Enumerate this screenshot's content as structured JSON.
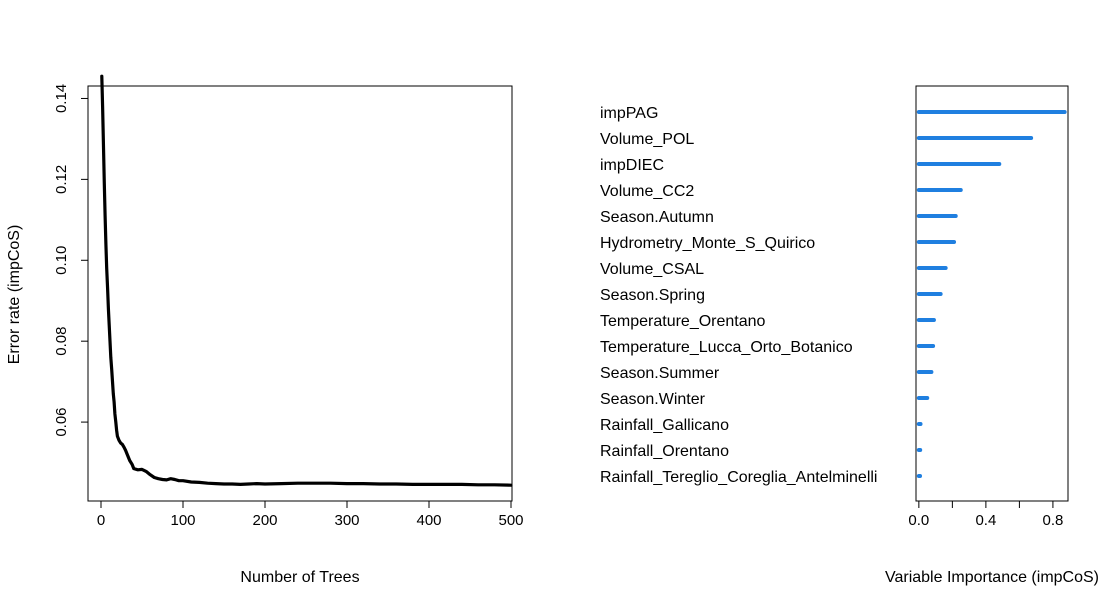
{
  "chart_data": [
    {
      "type": "line",
      "xlabel": "Number of Trees",
      "ylabel": "Error rate (impCoS)",
      "xlim": [
        0,
        500
      ],
      "ylim": [
        0.0442,
        0.1458
      ],
      "xticks": [
        0,
        100,
        200,
        300,
        400,
        500
      ],
      "xtick_labels": [
        "0",
        "100",
        "200",
        "300",
        "400",
        "500"
      ],
      "yticks": [
        0.06,
        0.08,
        0.1,
        0.12,
        0.14
      ],
      "ytick_labels": [
        "0.06",
        "0.08",
        "0.10",
        "0.12",
        "0.14"
      ],
      "grid": false,
      "line_color": "#000000",
      "x": [
        1,
        2,
        3,
        4,
        5,
        6,
        7,
        8,
        9,
        10,
        11,
        12,
        13,
        14,
        15,
        16,
        17,
        18,
        19,
        20,
        22,
        24,
        26,
        28,
        30,
        32,
        35,
        38,
        40,
        45,
        50,
        55,
        60,
        65,
        70,
        75,
        80,
        85,
        90,
        95,
        100,
        110,
        120,
        130,
        140,
        150,
        160,
        170,
        180,
        190,
        200,
        220,
        240,
        260,
        280,
        300,
        320,
        340,
        360,
        380,
        400,
        420,
        440,
        460,
        480,
        500
      ],
      "y": [
        0.1455,
        0.138,
        0.128,
        0.119,
        0.111,
        0.104,
        0.098,
        0.093,
        0.088,
        0.084,
        0.08,
        0.076,
        0.073,
        0.07,
        0.067,
        0.065,
        0.062,
        0.06,
        0.058,
        0.0565,
        0.0555,
        0.0548,
        0.0545,
        0.0538,
        0.053,
        0.052,
        0.0505,
        0.0495,
        0.0485,
        0.0482,
        0.0483,
        0.0478,
        0.047,
        0.0463,
        0.046,
        0.0458,
        0.0457,
        0.046,
        0.0458,
        0.0455,
        0.0455,
        0.0452,
        0.0451,
        0.0449,
        0.0448,
        0.0447,
        0.0447,
        0.0446,
        0.0447,
        0.0448,
        0.0447,
        0.0448,
        0.0449,
        0.0449,
        0.0449,
        0.0448,
        0.0448,
        0.0447,
        0.0447,
        0.0446,
        0.0446,
        0.0446,
        0.0446,
        0.0445,
        0.0445,
        0.0444
      ]
    },
    {
      "type": "bar",
      "orientation": "horizontal",
      "xlabel": "Variable Importance (impCoS)",
      "xlim": [
        -0.017,
        0.89
      ],
      "xticks": [
        0.0,
        0.2,
        0.4,
        0.6,
        0.8
      ],
      "xtick_labels": [
        "0.0",
        "",
        "0.4",
        "",
        "0.8"
      ],
      "bar_color": "#1f7fe0",
      "categories": [
        "impPAG",
        "Volume_POL",
        "impDIEC",
        "Volume_CC2",
        "Season.Autumn",
        "Hydrometry_Monte_S_Quirico",
        "Volume_CSAL",
        "Season.Spring",
        "Temperature_Orentano",
        "Temperature_Lucca_Orto_Botanico",
        "Season.Summer",
        "Season.Winter",
        "Rainfall_Gallicano",
        "Rainfall_Orentano",
        "Rainfall_Tereglio_Coreglia_Antelminelli"
      ],
      "values": [
        0.87,
        0.67,
        0.48,
        0.25,
        0.22,
        0.21,
        0.16,
        0.13,
        0.09,
        0.085,
        0.075,
        0.05,
        0.01,
        0.008,
        0.007
      ]
    }
  ]
}
